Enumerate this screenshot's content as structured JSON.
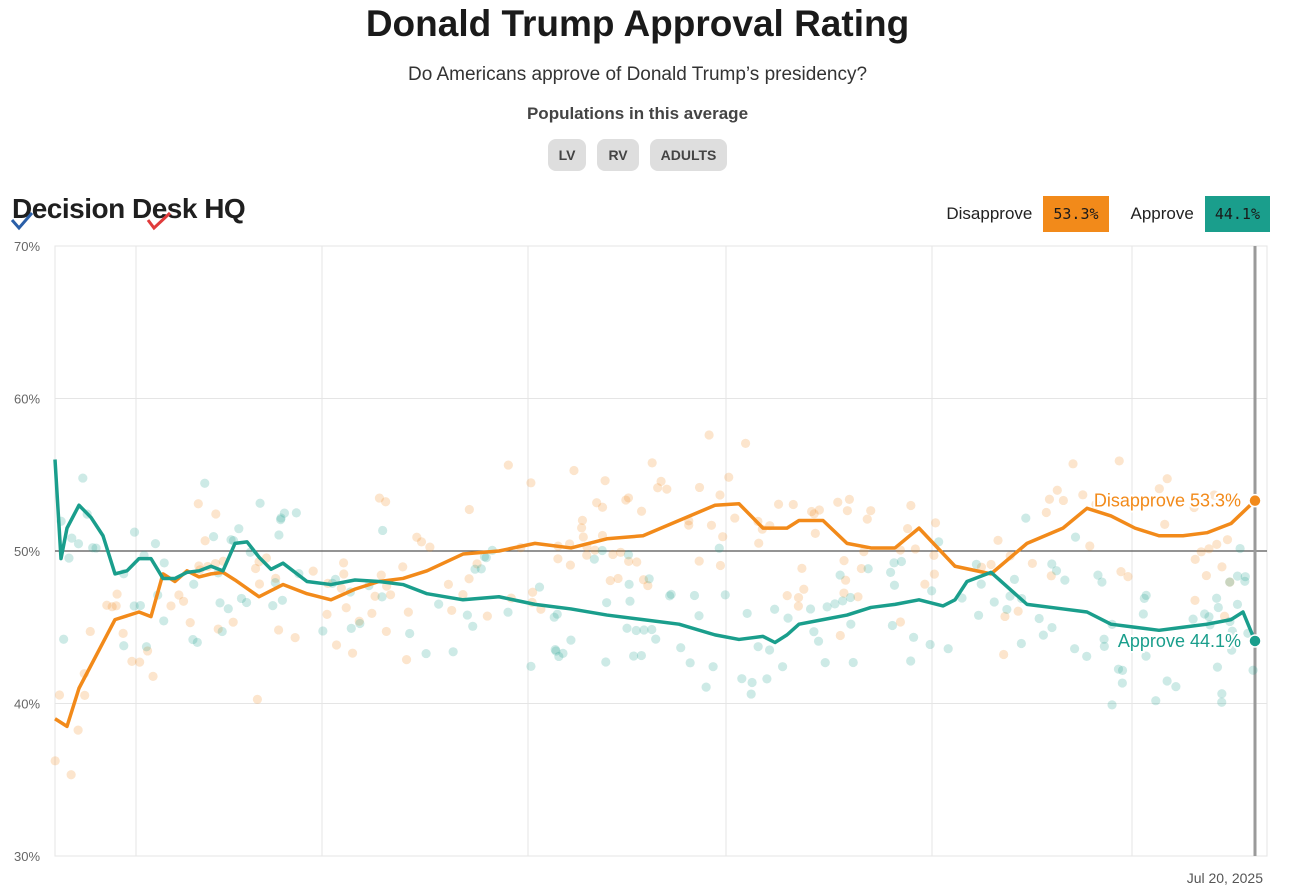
{
  "header": {
    "title": "Donald Trump Approval Rating",
    "subtitle": "Do Americans approve of Donald Trump’s presidency?",
    "populations_heading": "Populations in this average",
    "populations": [
      "LV",
      "RV",
      "ADULTS"
    ]
  },
  "brand": {
    "logo_text": "Decision Desk HQ"
  },
  "legend": {
    "disapprove_label": "Disapprove",
    "disapprove_value": "53.3%",
    "approve_label": "Approve",
    "approve_value": "44.1%"
  },
  "colors": {
    "disapprove": "#f28a1a",
    "approve": "#1a9e8c",
    "grid": "#e5e5e5",
    "midline": "#555555"
  },
  "chart_data": {
    "type": "line",
    "x_label": "Jul 20, 2025",
    "ylim": [
      30,
      70
    ],
    "y_ticks": [
      "30%",
      "40%",
      "50%",
      "60%",
      "70%"
    ],
    "x_domain": [
      0,
      100
    ],
    "reference_line": 50,
    "series": [
      {
        "name": "Disapprove",
        "end_label": "Disapprove 53.3%",
        "color": "#f28a1a",
        "x": [
          0,
          1,
          2,
          3,
          5,
          7,
          8,
          9,
          10,
          11,
          12,
          13,
          14,
          15,
          17,
          19,
          21,
          23,
          25,
          27,
          29,
          31,
          34,
          37,
          40,
          43,
          46,
          49,
          52,
          55,
          57,
          59,
          61,
          62,
          64,
          66,
          68,
          70,
          72,
          75,
          78,
          81,
          84,
          86,
          88,
          90,
          92,
          94,
          96,
          98,
          100
        ],
        "values": [
          39.0,
          38.5,
          41.0,
          42.5,
          45.5,
          46.0,
          45.7,
          48.5,
          48.0,
          48.7,
          48.3,
          48.5,
          48.6,
          48.1,
          47.0,
          47.8,
          47.2,
          46.8,
          47.5,
          48.0,
          48.2,
          48.7,
          49.8,
          50.0,
          50.5,
          50.2,
          50.8,
          51.0,
          52.0,
          53.0,
          53.1,
          51.5,
          51.5,
          52.0,
          52.0,
          50.5,
          50.2,
          50.2,
          51.5,
          49.0,
          48.5,
          50.5,
          51.5,
          52.8,
          52.3,
          51.5,
          51.0,
          51.0,
          51.2,
          51.8,
          53.3
        ]
      },
      {
        "name": "Approve",
        "end_label": "Approve 44.1%",
        "color": "#1a9e8c",
        "x": [
          0,
          0.5,
          1,
          2,
          3,
          4,
          5,
          6,
          7,
          8,
          9,
          10,
          11,
          12,
          13,
          14,
          15,
          16,
          17,
          18,
          19,
          21,
          23,
          25,
          27,
          29,
          31,
          34,
          37,
          40,
          43,
          46,
          49,
          52,
          55,
          57,
          59,
          60,
          61,
          62,
          64,
          66,
          68,
          70,
          72,
          74,
          75,
          76,
          78,
          81,
          84,
          86,
          88,
          90,
          92,
          94,
          96,
          98,
          99,
          100
        ],
        "values": [
          56.0,
          49.5,
          51.5,
          53.0,
          52.2,
          51.0,
          48.5,
          48.7,
          49.5,
          49.5,
          48.2,
          48.2,
          48.6,
          48.7,
          49.0,
          48.7,
          50.5,
          50.6,
          49.6,
          48.8,
          49.2,
          48.0,
          47.8,
          48.1,
          48.0,
          47.8,
          47.2,
          46.8,
          47.0,
          46.5,
          46.2,
          45.8,
          45.5,
          45.2,
          44.5,
          44.2,
          44.4,
          44.0,
          44.5,
          45.2,
          45.5,
          45.8,
          46.3,
          46.5,
          46.8,
          46.4,
          46.8,
          48.0,
          48.6,
          46.5,
          46.2,
          46.0,
          45.2,
          45.0,
          44.8,
          45.0,
          45.2,
          45.5,
          46.0,
          44.1
        ]
      }
    ]
  }
}
